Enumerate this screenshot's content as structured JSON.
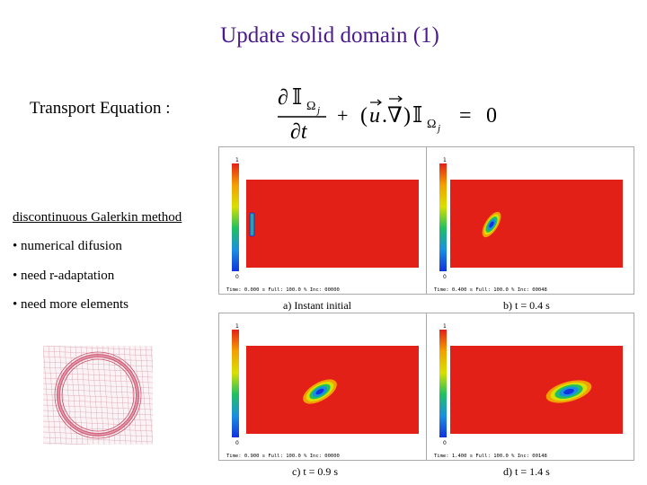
{
  "title": "Update solid domain (1)",
  "transport_label": "Transport Equation :",
  "equation": {
    "partial": "∂",
    "indicator": "𝕀",
    "omega": "Ω",
    "sub_j": "j",
    "dt": "∂t",
    "plus": "+",
    "u": "u",
    "nabla": "∇",
    "equals": "=",
    "zero": "0"
  },
  "bullets": {
    "heading": "discontinuous Galerkin method",
    "items": [
      "• numerical difusion",
      "• need r-adaptation",
      "• need more elements"
    ]
  },
  "panels": [
    {
      "caption": "a) Instant initial",
      "status": "Time: 0.000 s  Full: 100.0 %  Inc: 00000",
      "legend_min": "0",
      "legend_max": "1"
    },
    {
      "caption": "b) t = 0.4 s",
      "status": "Time: 0.400 s  Full: 100.0 %  Inc: 00048",
      "legend_min": "0",
      "legend_max": "1"
    },
    {
      "caption": "c) t = 0.9 s",
      "status": "Time: 0.900 s  Full: 100.0 %  Inc: 00000",
      "legend_min": "0",
      "legend_max": "1"
    },
    {
      "caption": "d) t = 1.4 s",
      "status": "Time: 1.400 s  Full: 100.0 %  Inc: 00148",
      "legend_min": "0",
      "legend_max": "1"
    }
  ],
  "colors": {
    "title": "#4b1a8c",
    "field": "#e32017",
    "blob_core": "#1133dd",
    "mesh": "#c8506a"
  }
}
